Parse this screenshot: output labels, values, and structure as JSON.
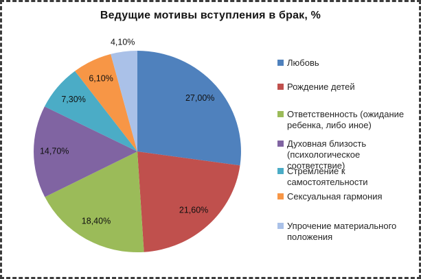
{
  "title": "Ведущие мотивы вступления в брак, %",
  "chart_data": {
    "type": "pie",
    "title": "Ведущие мотивы вступления в брак, %",
    "legend_position": "right",
    "start_angle_deg": 0,
    "direction": "clockwise",
    "values_unit": "%",
    "decimal_separator": ",",
    "slices": [
      {
        "label": "Любовь",
        "value": 27.0,
        "display": "27,00%",
        "color": "#4F81BD"
      },
      {
        "label": "Рождение детей",
        "value": 21.6,
        "display": "21,60%",
        "color": "#C0504D"
      },
      {
        "label": "Ответственность (ожидание\nребенка, либо иное)",
        "value": 18.4,
        "display": "18,40%",
        "color": "#9BBB59"
      },
      {
        "label": "Духовная близость\n(психологическое соответствие)",
        "value": 14.7,
        "display": "14,70%",
        "color": "#8064A2"
      },
      {
        "label": "Стремление к\nсамостоятельности",
        "value": 7.3,
        "display": "7,30%",
        "color": "#4BACC6"
      },
      {
        "label": "Сексуальная гармония",
        "value": 6.1,
        "display": "6,10%",
        "color": "#F79646"
      },
      {
        "label": "Упрочение материального\nположения",
        "value": 4.1,
        "display": "4,10%",
        "color": "#AAC1E8"
      }
    ]
  }
}
